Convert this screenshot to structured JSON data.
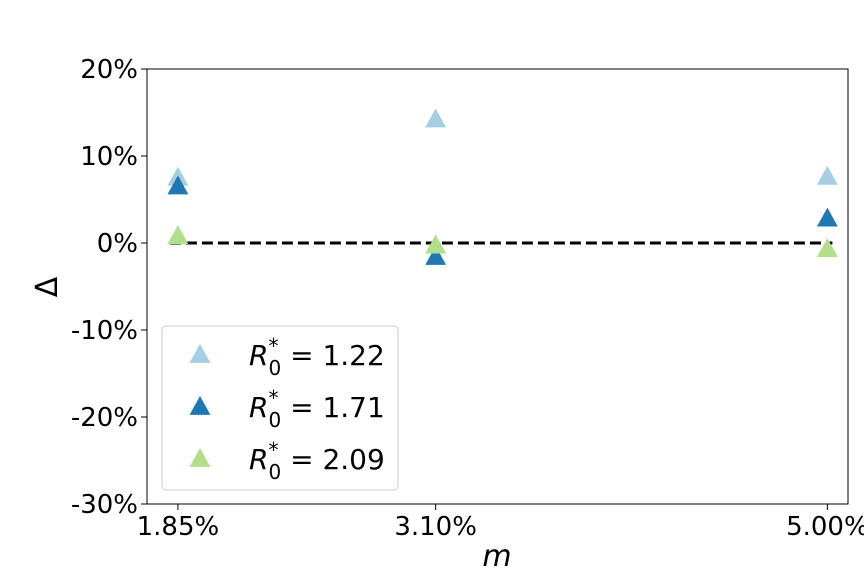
{
  "chart_data": {
    "type": "scatter",
    "xlabel": "m",
    "ylabel": "Δ",
    "ylim": [
      -30,
      20
    ],
    "x_categories": [
      "1.85%",
      "3.10%",
      "5.00%"
    ],
    "x": [
      1.85,
      3.1,
      5.0
    ],
    "y_ticks": [
      "20%",
      "10%",
      "0%",
      "-10%",
      "-20%",
      "-30%"
    ],
    "y_tick_values": [
      20,
      10,
      0,
      -10,
      -20,
      -30
    ],
    "reference_line": {
      "y": 0,
      "style": "dashed",
      "color": "#000000"
    },
    "legend_position": "lower-left",
    "series": [
      {
        "name": "R_0^* = 1.22",
        "label_main": "R",
        "label_sub": "0",
        "label_sup": "*",
        "label_value": " = 1.22",
        "color": "#a6cee3",
        "marker": "triangle-up",
        "values": [
          7.5,
          14.2,
          7.6
        ]
      },
      {
        "name": "R_0^* = 1.71",
        "label_main": "R",
        "label_sub": "0",
        "label_sup": "*",
        "label_value": " = 1.71",
        "color": "#1f78b4",
        "marker": "triangle-up",
        "values": [
          6.5,
          -1.6,
          2.8
        ]
      },
      {
        "name": "R_0^* = 2.09",
        "label_main": "R",
        "label_sub": "0",
        "label_sup": "*",
        "label_value": " = 2.09",
        "color": "#b2df8a",
        "marker": "triangle-up",
        "values": [
          0.8,
          -0.3,
          -0.7
        ]
      }
    ]
  }
}
